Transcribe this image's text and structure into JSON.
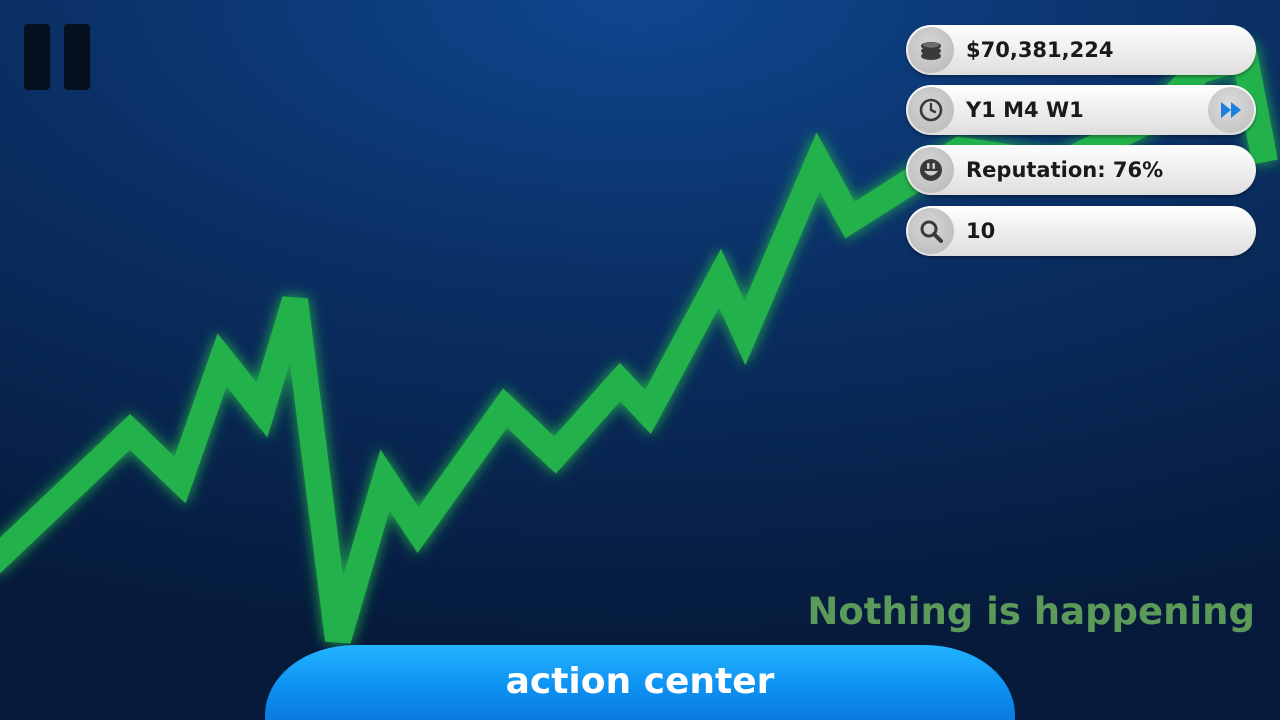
{
  "hud": {
    "money": "$70,381,224",
    "date": "Y1 M4 W1",
    "reputation": "Reputation: 76%",
    "research": "10"
  },
  "icons": {
    "money": "coin-stack-icon",
    "date": "clock-icon",
    "fast_forward": "fast-forward-icon",
    "reputation": "smiley-icon",
    "research": "magnifier-icon",
    "pause": "pause-icon"
  },
  "status": "Nothing is happening",
  "action_center_label": "action center",
  "colors": {
    "chart_line": "#22b14c",
    "status_text": "#5b9a58",
    "action_button": "#0c8ff0",
    "fast_forward": "#1a7fe0"
  }
}
